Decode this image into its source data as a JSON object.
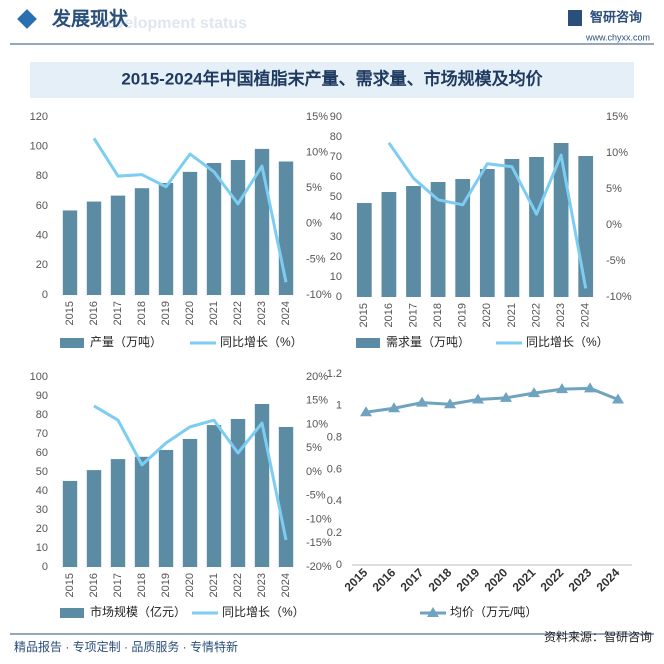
{
  "header": {
    "title": "发展现状",
    "subtitle": "Development status",
    "logo": "智研咨询",
    "url": "www.chyxx.com"
  },
  "main_title": "2015-2024年中国植脂末产量、需求量、市场规模及均价",
  "footer": {
    "left": "精品报告 · 专项定制 · 品质服务 · 专情特新",
    "right": "资料来源：智研咨询"
  },
  "chart_data": [
    {
      "type": "combo",
      "categories": [
        "2015",
        "2016",
        "2017",
        "2018",
        "2019",
        "2020",
        "2021",
        "2022",
        "2023",
        "2024"
      ],
      "series": [
        {
          "name": "产量（万吨）",
          "type": "bar",
          "color": "#5b8ca3",
          "values": [
            57,
            63,
            67,
            72,
            75.5,
            83,
            89,
            91,
            98.5,
            90
          ]
        },
        {
          "name": "同比增长（%）",
          "type": "line",
          "axis": "y2",
          "color": "#7dcdf2",
          "values": [
            null,
            12.0,
            6.7,
            6.9,
            5.2,
            9.8,
            7.3,
            2.8,
            8.1,
            -8.2
          ]
        }
      ],
      "ylim": [
        0,
        120
      ],
      "yticks": [
        0,
        20,
        40,
        60,
        80,
        100,
        120
      ],
      "y2lim": [
        -10,
        15
      ],
      "y2ticks": [
        {
          "value": -10,
          "label": "-10%"
        },
        {
          "value": -5,
          "label": "-5%"
        },
        {
          "value": 0,
          "label": "0%"
        },
        {
          "value": 5,
          "label": "5%"
        },
        {
          "value": 10,
          "label": "10%"
        },
        {
          "value": 15,
          "label": "15%"
        }
      ],
      "grid": false
    },
    {
      "type": "combo",
      "categories": [
        "2015",
        "2016",
        "2017",
        "2018",
        "2019",
        "2020",
        "2021",
        "2022",
        "2023",
        "2024"
      ],
      "series": [
        {
          "name": "需求量（万吨）",
          "type": "bar",
          "color": "#5b8ca3",
          "values": [
            47,
            52.5,
            55.5,
            57.5,
            59,
            64,
            69,
            70,
            77,
            70.5
          ]
        },
        {
          "name": "同比增长（%）",
          "type": "line",
          "axis": "y2",
          "color": "#7dcdf2",
          "values": [
            null,
            11.4,
            6.5,
            3.5,
            2.8,
            8.5,
            8.1,
            1.5,
            9.7,
            -8.8
          ]
        }
      ],
      "ylim": [
        0,
        90
      ],
      "yticks": [
        0,
        10,
        20,
        30,
        40,
        50,
        60,
        70,
        80,
        90
      ],
      "y2lim": [
        -10,
        15
      ],
      "y2ticks": [
        {
          "value": -10,
          "label": "-10%"
        },
        {
          "value": -5,
          "label": "-5%"
        },
        {
          "value": 0,
          "label": "0%"
        },
        {
          "value": 5,
          "label": "5%"
        },
        {
          "value": 10,
          "label": "10%"
        },
        {
          "value": 15,
          "label": "15%"
        }
      ],
      "grid": false
    },
    {
      "type": "combo",
      "categories": [
        "2015",
        "2016",
        "2017",
        "2018",
        "2019",
        "2020",
        "2021",
        "2022",
        "2023",
        "2024"
      ],
      "series": [
        {
          "name": "市场规模（亿元）",
          "type": "bar",
          "color": "#5b8ca3",
          "values": [
            45.3,
            51,
            56.8,
            58,
            61.6,
            67.4,
            74.7,
            77.9,
            85.8,
            73.7
          ]
        },
        {
          "name": "同比增长（%）",
          "type": "line",
          "axis": "y2",
          "color": "#7dcdf2",
          "values": [
            null,
            13.9,
            10.9,
            1.5,
            6.1,
            9.5,
            10.9,
            4.0,
            10.3,
            -14.3
          ]
        }
      ],
      "ylim": [
        0,
        100
      ],
      "yticks": [
        0,
        10,
        20,
        30,
        40,
        50,
        60,
        70,
        80,
        90,
        100
      ],
      "y2lim": [
        -20,
        20
      ],
      "y2ticks": [
        {
          "value": -20,
          "label": "-20%"
        },
        {
          "value": -15,
          "label": "-15%"
        },
        {
          "value": -10,
          "label": "-10%"
        },
        {
          "value": -5,
          "label": "-5%"
        },
        {
          "value": 0,
          "label": "0%"
        },
        {
          "value": 5,
          "label": "5%"
        },
        {
          "value": 10,
          "label": "10%"
        },
        {
          "value": 15,
          "label": "15%"
        },
        {
          "value": 20,
          "label": "20%"
        }
      ],
      "grid": false
    },
    {
      "type": "line",
      "categories": [
        "2015",
        "2016",
        "2017",
        "2018",
        "2019",
        "2020",
        "2021",
        "2022",
        "2023",
        "2024"
      ],
      "series": [
        {
          "name": "均价（万元/吨）",
          "type": "line",
          "marker": "triangle",
          "color": "#6fa3bf",
          "values": [
            0.96,
            0.985,
            1.02,
            1.01,
            1.04,
            1.05,
            1.08,
            1.105,
            1.11,
            1.04
          ]
        }
      ],
      "ylim": [
        0,
        1.2
      ],
      "yticks": [
        0,
        0.2,
        0.4,
        0.6,
        0.8,
        1,
        1.2
      ],
      "grid": false
    }
  ]
}
